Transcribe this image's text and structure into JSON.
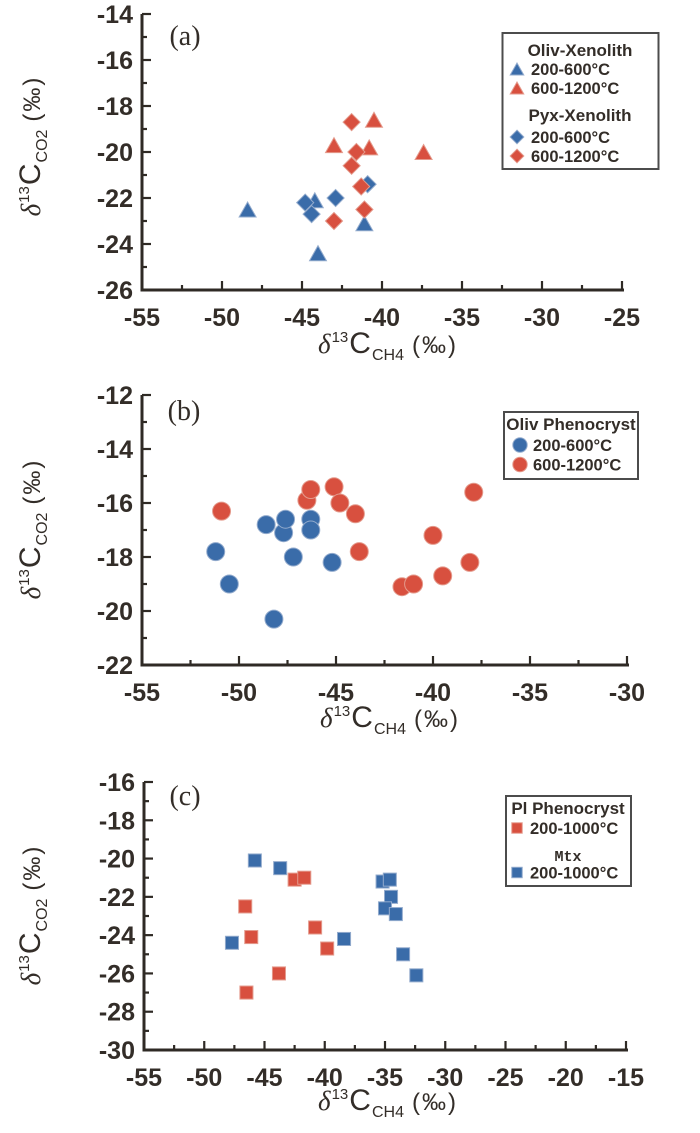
{
  "figure": {
    "background": "#ffffff",
    "axis_color": "#2f2a25",
    "text_color": "#332d28",
    "series_colors": {
      "blue": "#3a6ca9",
      "red": "#d8503f"
    },
    "marker_edge_colors": {
      "blue": "#93abcd",
      "red": "#e49a8c"
    },
    "legend_border_color": "#4c4c4c"
  },
  "chart_data": [
    {
      "panel_label": "(a)",
      "type": "scatter",
      "xlabel": {
        "delta": "δ",
        "iso": "13",
        "element": "C",
        "sub": "CH4",
        "units": "(‰)"
      },
      "ylabel": {
        "delta": "δ",
        "iso": "13",
        "element": "C",
        "sub": "CO2",
        "units": "(‰)"
      },
      "xlim": [
        -55,
        -25
      ],
      "ylim": [
        -26,
        -14
      ],
      "xticks": [
        -55,
        -50,
        -45,
        -40,
        -35,
        -30,
        -25
      ],
      "yticks": [
        -26,
        -24,
        -22,
        -20,
        -18,
        -16,
        -14
      ],
      "x_minor_step": 2.5,
      "y_minor_step": 1,
      "grid": false,
      "legend_position": "top-right",
      "legend_rows": [
        {
          "type": "title",
          "text": "Oliv-Xenolith"
        },
        {
          "type": "item",
          "marker": "triangle",
          "color": "blue",
          "text": "200-600°C"
        },
        {
          "type": "item",
          "marker": "triangle",
          "color": "red",
          "text": "600-1200°C"
        },
        {
          "type": "title",
          "text": "Pyx-Xenolith"
        },
        {
          "type": "item",
          "marker": "diamond",
          "color": "blue",
          "text": "200-600°C"
        },
        {
          "type": "item",
          "marker": "diamond",
          "color": "red",
          "text": "600-1200°C"
        }
      ],
      "series": [
        {
          "name": "Oliv-Xenolith 200-600°C",
          "marker": "triangle",
          "color": "blue",
          "points": [
            [
              -48.4,
              -22.5
            ],
            [
              -44.2,
              -22.1
            ],
            [
              -44.0,
              -24.4
            ],
            [
              -41.1,
              -23.1
            ]
          ]
        },
        {
          "name": "Pyx-Xenolith 200-600°C",
          "marker": "diamond",
          "color": "blue",
          "points": [
            [
              -44.8,
              -22.2
            ],
            [
              -44.4,
              -22.7
            ],
            [
              -42.9,
              -22.0
            ],
            [
              -40.9,
              -21.4
            ]
          ]
        },
        {
          "name": "Oliv-Xenolith 600-1200°C",
          "marker": "triangle",
          "color": "red",
          "points": [
            [
              -43.0,
              -19.7
            ],
            [
              -40.5,
              -18.6
            ],
            [
              -40.8,
              -19.8
            ],
            [
              -37.4,
              -20.0
            ]
          ]
        },
        {
          "name": "Pyx-Xenolith 600-1200°C",
          "marker": "diamond",
          "color": "red",
          "points": [
            [
              -41.9,
              -18.7
            ],
            [
              -41.6,
              -20.0
            ],
            [
              -41.9,
              -20.6
            ],
            [
              -41.3,
              -21.5
            ],
            [
              -41.1,
              -22.5
            ],
            [
              -43.0,
              -23.0
            ]
          ]
        }
      ]
    },
    {
      "panel_label": "(b)",
      "type": "scatter",
      "xlabel": {
        "delta": "δ",
        "iso": "13",
        "element": "C",
        "sub": "CH4",
        "units": "(‰)"
      },
      "ylabel": {
        "delta": "δ",
        "iso": "13",
        "element": "C",
        "sub": "CO2",
        "units": "(‰)"
      },
      "xlim": [
        -55,
        -30
      ],
      "ylim": [
        -22,
        -12
      ],
      "xticks": [
        -55,
        -50,
        -45,
        -40,
        -35,
        -30
      ],
      "yticks": [
        -22,
        -20,
        -18,
        -16,
        -14,
        -12
      ],
      "x_minor_step": 2.5,
      "y_minor_step": 1,
      "grid": false,
      "legend_position": "top-right",
      "legend_rows": [
        {
          "type": "title",
          "text": "Oliv Phenocryst"
        },
        {
          "type": "item",
          "marker": "circle",
          "color": "blue",
          "text": "200-600°C"
        },
        {
          "type": "item",
          "marker": "circle",
          "color": "red",
          "text": "600-1200°C"
        }
      ],
      "series": [
        {
          "name": "Oliv Phenocryst 200-600°C",
          "marker": "circle",
          "color": "blue",
          "points": [
            [
              -51.2,
              -17.8
            ],
            [
              -50.5,
              -19.0
            ],
            [
              -48.6,
              -16.8
            ],
            [
              -48.2,
              -20.3
            ],
            [
              -47.7,
              -17.1
            ],
            [
              -47.6,
              -16.6
            ],
            [
              -47.2,
              -18.0
            ],
            [
              -46.3,
              -16.6
            ],
            [
              -46.3,
              -17.0
            ],
            [
              -45.2,
              -18.2
            ]
          ]
        },
        {
          "name": "Oliv Phenocryst 600-1200°C",
          "marker": "circle",
          "color": "red",
          "points": [
            [
              -50.9,
              -16.3
            ],
            [
              -46.5,
              -15.9
            ],
            [
              -46.3,
              -15.5
            ],
            [
              -45.1,
              -15.4
            ],
            [
              -44.8,
              -16.0
            ],
            [
              -44.0,
              -16.4
            ],
            [
              -43.8,
              -17.8
            ],
            [
              -41.6,
              -19.1
            ],
            [
              -41.0,
              -19.0
            ],
            [
              -40.0,
              -17.2
            ],
            [
              -39.5,
              -18.7
            ],
            [
              -38.1,
              -18.2
            ],
            [
              -37.9,
              -15.6
            ]
          ]
        }
      ]
    },
    {
      "panel_label": "(c)",
      "type": "scatter",
      "xlabel": {
        "delta": "δ",
        "iso": "13",
        "element": "C",
        "sub": "CH4",
        "units": "(‰)"
      },
      "ylabel": {
        "delta": "δ",
        "iso": "13",
        "element": "C",
        "sub": "CO2",
        "units": "(‰)"
      },
      "xlim": [
        -55,
        -15
      ],
      "ylim": [
        -30,
        -16
      ],
      "xticks": [
        -55,
        -50,
        -45,
        -40,
        -35,
        -30,
        -25,
        -20,
        -15
      ],
      "yticks": [
        -30,
        -28,
        -26,
        -24,
        -22,
        -20,
        -18,
        -16
      ],
      "x_minor_step": 2.5,
      "y_minor_step": 1,
      "grid": false,
      "legend_position": "top-right",
      "legend_rows": [
        {
          "type": "title",
          "text": "Pl Phenocryst"
        },
        {
          "type": "item",
          "marker": "square",
          "color": "red",
          "text": "200-1000°C"
        },
        {
          "type": "title",
          "text": "Mtx",
          "style": "mono"
        },
        {
          "type": "item",
          "marker": "square",
          "color": "blue",
          "text": "200-1000°C"
        }
      ],
      "series": [
        {
          "name": "Pl Phenocryst 200-1000°C",
          "marker": "square",
          "color": "red",
          "points": [
            [
              -46.6,
              -22.5
            ],
            [
              -46.1,
              -24.1
            ],
            [
              -46.5,
              -27.0
            ],
            [
              -43.8,
              -26.0
            ],
            [
              -42.5,
              -21.1
            ],
            [
              -41.7,
              -21.0
            ],
            [
              -40.8,
              -23.6
            ],
            [
              -39.8,
              -24.7
            ]
          ]
        },
        {
          "name": "Mtx 200-1000°C",
          "marker": "square",
          "color": "blue",
          "points": [
            [
              -47.7,
              -24.4
            ],
            [
              -45.8,
              -20.1
            ],
            [
              -43.7,
              -20.5
            ],
            [
              -38.4,
              -24.2
            ],
            [
              -35.2,
              -21.2
            ],
            [
              -34.6,
              -21.1
            ],
            [
              -34.5,
              -22.0
            ],
            [
              -35.0,
              -22.6
            ],
            [
              -34.1,
              -22.9
            ],
            [
              -33.5,
              -25.0
            ],
            [
              -32.4,
              -26.1
            ]
          ]
        }
      ]
    }
  ]
}
